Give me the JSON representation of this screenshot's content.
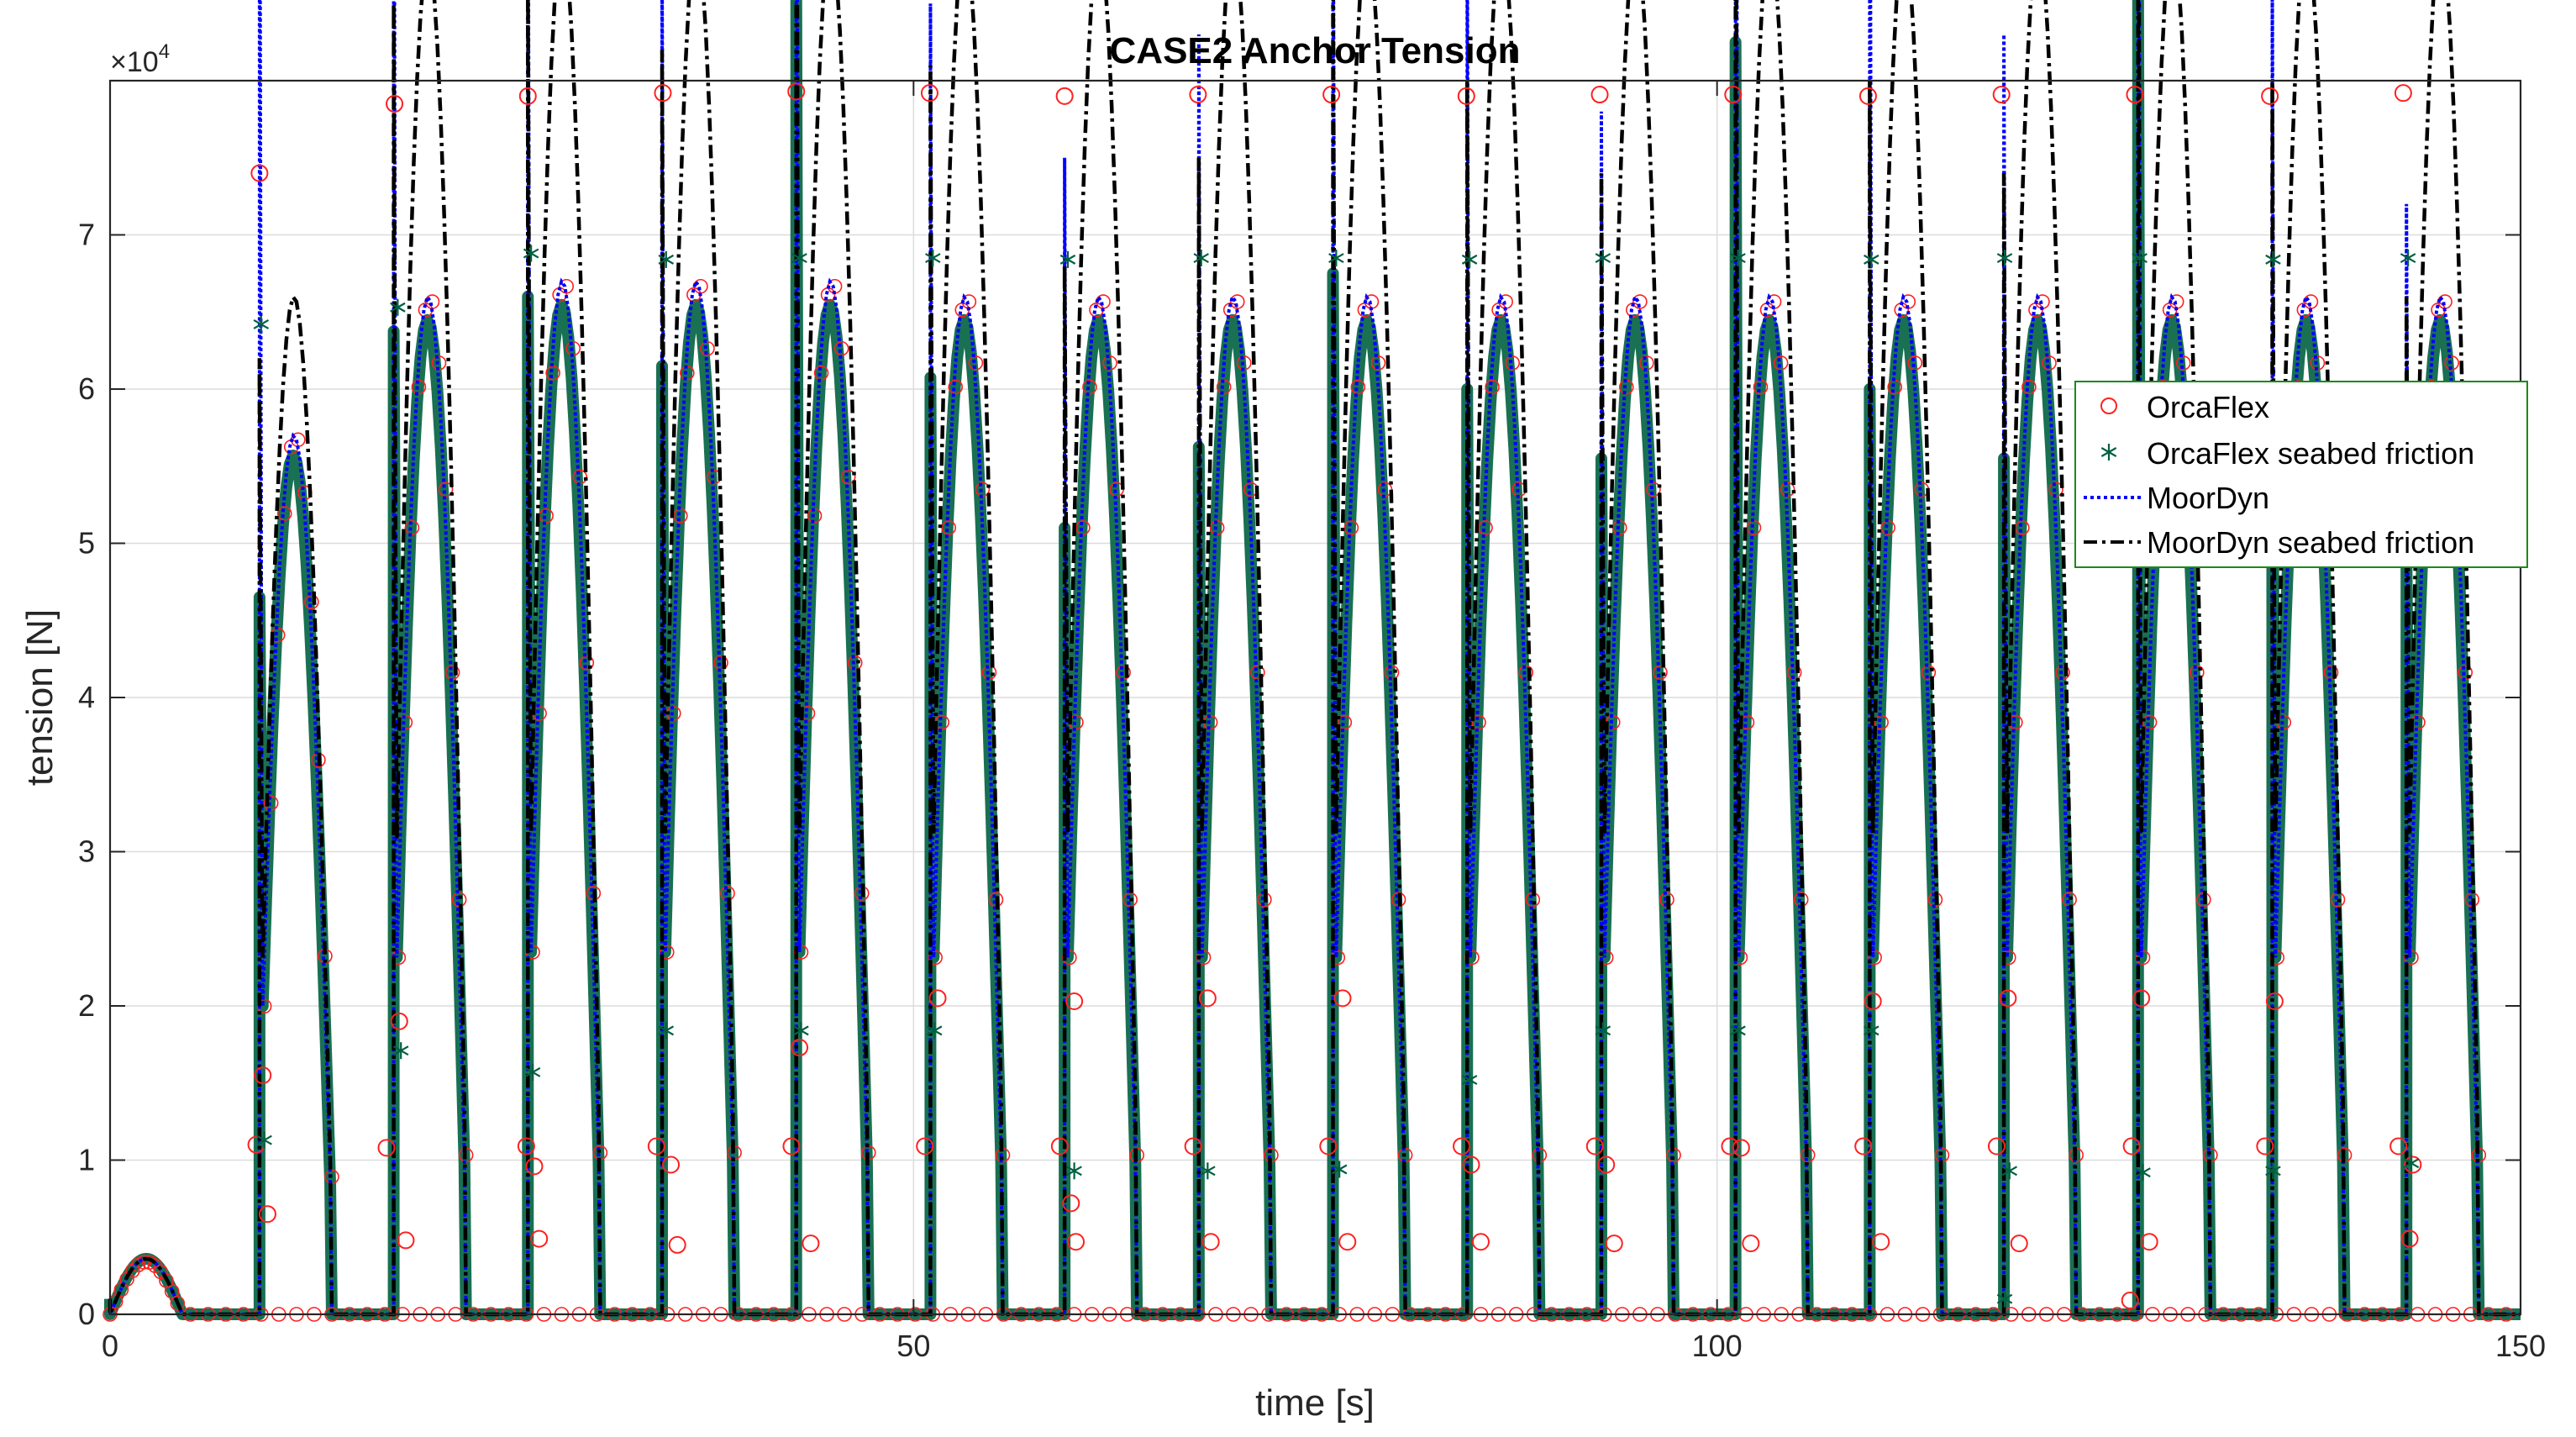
{
  "chart_data": {
    "type": "scatter",
    "title": "CASE2 Anchor Tension",
    "xlabel": "time [s]",
    "ylabel": "tension [N]",
    "y_exponent_label": "×10",
    "y_exponent_power": "4",
    "xlim": [
      0,
      150
    ],
    "ylim": [
      0,
      80000
    ],
    "xticks": [
      0,
      50,
      100,
      150
    ],
    "yticks": [
      0,
      10000,
      20000,
      30000,
      40000,
      50000,
      60000,
      70000
    ],
    "xtick_labels": [
      "0",
      "50",
      "100",
      "150"
    ],
    "ytick_labels": [
      "0",
      "1",
      "2",
      "3",
      "4",
      "5",
      "6",
      "7"
    ],
    "grid": true,
    "legend_position": "right",
    "series": [
      {
        "name": "OrcaFlex",
        "style": "circle",
        "color": "#ff2020",
        "points": [
          [
            9.3,
            74000
          ],
          [
            17.7,
            78500
          ],
          [
            26,
            79000
          ],
          [
            34.4,
            79200
          ],
          [
            42.7,
            79300
          ],
          [
            51,
            79200
          ],
          [
            59.4,
            79000
          ],
          [
            67.7,
            79100
          ],
          [
            76,
            79100
          ],
          [
            84.4,
            79000
          ],
          [
            92.7,
            79100
          ],
          [
            101,
            79100
          ],
          [
            109.4,
            79000
          ],
          [
            117.7,
            79100
          ],
          [
            126,
            79100
          ],
          [
            134.4,
            79000
          ],
          [
            142.7,
            79200
          ],
          [
            9.5,
            15500
          ],
          [
            18,
            19000
          ],
          [
            51.5,
            20500
          ],
          [
            60,
            20300
          ],
          [
            68.3,
            20500
          ],
          [
            76.7,
            20500
          ],
          [
            109.7,
            20300
          ],
          [
            118.1,
            20500
          ],
          [
            126.4,
            20500
          ],
          [
            134.7,
            20300
          ],
          [
            42.9,
            17300
          ],
          [
            9.1,
            11000
          ],
          [
            17.2,
            10800
          ],
          [
            25.9,
            10900
          ],
          [
            34,
            10900
          ],
          [
            42.4,
            10900
          ],
          [
            50.7,
            10900
          ],
          [
            59.1,
            10900
          ],
          [
            67.4,
            10900
          ],
          [
            75.8,
            10900
          ],
          [
            84.1,
            10900
          ],
          [
            92.4,
            10900
          ],
          [
            100.8,
            10900
          ],
          [
            109.1,
            10900
          ],
          [
            117.4,
            10900
          ],
          [
            125.8,
            10900
          ],
          [
            134.1,
            10900
          ],
          [
            142.4,
            10900
          ],
          [
            26.4,
            9600
          ],
          [
            34.9,
            9700
          ],
          [
            84.7,
            9700
          ],
          [
            93.1,
            9700
          ],
          [
            101.5,
            10800
          ],
          [
            9.8,
            6500
          ],
          [
            18.4,
            4800
          ],
          [
            26.7,
            4900
          ],
          [
            35.3,
            4500
          ],
          [
            43.6,
            4600
          ],
          [
            59.8,
            7200
          ],
          [
            60.1,
            4700
          ],
          [
            68.5,
            4700
          ],
          [
            77,
            4700
          ],
          [
            85.3,
            4700
          ],
          [
            93.6,
            4600
          ],
          [
            102.1,
            4600
          ],
          [
            110.2,
            4700
          ],
          [
            118.8,
            4600
          ],
          [
            126.9,
            4700
          ],
          [
            125.7,
            900
          ],
          [
            143.3,
            9700
          ],
          [
            143.1,
            4900
          ]
        ]
      },
      {
        "name": "OrcaFlex seabed friction",
        "style": "asterisk",
        "color": "#006040",
        "points": [
          [
            9.4,
            64200
          ],
          [
            17.9,
            65300
          ],
          [
            26.2,
            68800
          ],
          [
            34.6,
            68400
          ],
          [
            42.9,
            68500
          ],
          [
            51.2,
            68500
          ],
          [
            59.6,
            68400
          ],
          [
            67.9,
            68500
          ],
          [
            76.3,
            68500
          ],
          [
            84.6,
            68400
          ],
          [
            92.9,
            68500
          ],
          [
            101.3,
            68500
          ],
          [
            109.6,
            68400
          ],
          [
            117.9,
            68500
          ],
          [
            126.3,
            68500
          ],
          [
            134.6,
            68400
          ],
          [
            143,
            68500
          ],
          [
            9.6,
            11300
          ],
          [
            18.1,
            17100
          ],
          [
            26.3,
            15700
          ],
          [
            34.6,
            18400
          ],
          [
            43,
            18400
          ],
          [
            51.3,
            18400
          ],
          [
            84.6,
            15200
          ],
          [
            92.9,
            18400
          ],
          [
            101.3,
            18400
          ],
          [
            109.6,
            18400
          ],
          [
            60,
            9300
          ],
          [
            68.3,
            9300
          ],
          [
            76.5,
            9400
          ],
          [
            118.2,
            9300
          ],
          [
            126.5,
            9200
          ],
          [
            134.6,
            9300
          ],
          [
            143.2,
            9800
          ],
          [
            117.9,
            1000
          ]
        ]
      },
      {
        "name": "MoorDyn",
        "style": "dotted",
        "color": "#0000ff",
        "spikes": [
          10.8,
          11.4,
          10.4,
          8.8,
          13.3,
          8.5,
          7.5,
          8.3,
          10.2,
          9.2,
          7.8,
          16.5,
          11.3,
          8.3,
          13.3,
          8.7,
          7.2
        ],
        "peaks": [
          5.7,
          6.6,
          6.7,
          6.7,
          6.7,
          6.6,
          6.6,
          6.6,
          6.6,
          6.6,
          6.6,
          6.6,
          6.6,
          6.6,
          6.6,
          6.6,
          6.6
        ]
      },
      {
        "name": "MoorDyn seabed friction",
        "style": "dashdot",
        "color": "#000000",
        "spikes": [
          6.2,
          8.5,
          8.8,
          8.2,
          11.5,
          8.1,
          6.8,
          7.5,
          9.0,
          8.0,
          7.4,
          11.0,
          8.0,
          7.4,
          11.5,
          8.0,
          6.6
        ],
        "peaks": [
          6.6,
          8.8,
          8.9,
          8.9,
          8.9,
          8.9,
          8.9,
          8.9,
          8.9,
          8.9,
          8.9,
          8.9,
          8.9,
          8.9,
          8.9,
          8.9,
          8.9
        ]
      }
    ]
  }
}
